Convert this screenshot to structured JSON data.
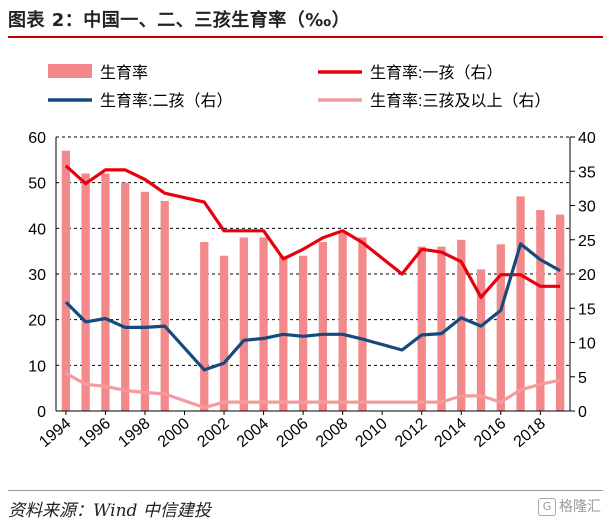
{
  "title": "图表 2：中国一、二、三孩生育率（‰）",
  "source": "资料来源：Wind    中信建投",
  "watermark": "格隆汇",
  "watermark_icon": "G-icon",
  "colors": {
    "bar": "#f4898c",
    "line1": "#e8000e",
    "line2": "#174a7c",
    "line3": "#f49b9d"
  },
  "chart_data": {
    "type": "bar+line",
    "x": [
      1994,
      1995,
      1996,
      1997,
      1998,
      1999,
      2000,
      2001,
      2002,
      2003,
      2004,
      2005,
      2006,
      2007,
      2008,
      2009,
      2010,
      2011,
      2012,
      2013,
      2014,
      2015,
      2016,
      2017,
      2018,
      2019
    ],
    "xticks": [
      "1994",
      "1996",
      "1998",
      "2000",
      "2002",
      "2004",
      "2006",
      "2008",
      "2010",
      "2012",
      "2014",
      "2016",
      "2018"
    ],
    "left_ylim": [
      0,
      60
    ],
    "left_yticks": [
      "0",
      "10",
      "20",
      "30",
      "40",
      "50",
      "60"
    ],
    "right_ylim": [
      0,
      40
    ],
    "right_yticks": [
      "0",
      "5",
      "10",
      "15",
      "20",
      "25",
      "30",
      "35",
      "40"
    ],
    "legend": [
      "生育率",
      "生育率:一孩（右）",
      "生育率:二孩（右）",
      "生育率:三孩及以上（右）"
    ],
    "series": [
      {
        "name": "生育率",
        "axis": "left",
        "kind": "bar",
        "values": [
          57,
          52,
          52,
          50,
          48,
          46,
          null,
          37,
          34,
          38,
          38,
          34,
          34,
          37,
          39,
          38,
          null,
          null,
          36,
          36,
          37.5,
          31,
          36.5,
          47,
          44,
          43
        ]
      },
      {
        "name": "生育率:一孩（右）",
        "axis": "right",
        "kind": "line",
        "values": [
          35.8,
          33.2,
          35.2,
          35.2,
          33.8,
          31.8,
          null,
          30.5,
          26.3,
          26.3,
          26.3,
          22.2,
          23.6,
          25.3,
          26.3,
          24.6,
          null,
          20.0,
          23.6,
          23.2,
          21.8,
          16.6,
          19.9,
          19.9,
          18.2,
          18.2
        ]
      },
      {
        "name": "生育率:二孩（右）",
        "axis": "right",
        "kind": "line",
        "values": [
          15.9,
          13.0,
          13.5,
          12.2,
          12.2,
          12.4,
          null,
          6.0,
          7.0,
          10.3,
          10.6,
          11.2,
          10.9,
          11.2,
          11.2,
          10.5,
          null,
          8.9,
          11.1,
          11.3,
          13.6,
          12.4,
          14.7,
          24.4,
          22.1,
          20.5
        ]
      },
      {
        "name": "生育率:三孩及以上（右）",
        "axis": "right",
        "kind": "line",
        "values": [
          5.5,
          3.9,
          3.6,
          3.0,
          2.7,
          2.5,
          null,
          0.5,
          1.3,
          1.3,
          1.3,
          1.3,
          1.3,
          1.3,
          1.3,
          1.3,
          null,
          1.3,
          1.3,
          1.3,
          2.2,
          2.2,
          1.3,
          3.1,
          3.9,
          4.5
        ]
      }
    ]
  }
}
